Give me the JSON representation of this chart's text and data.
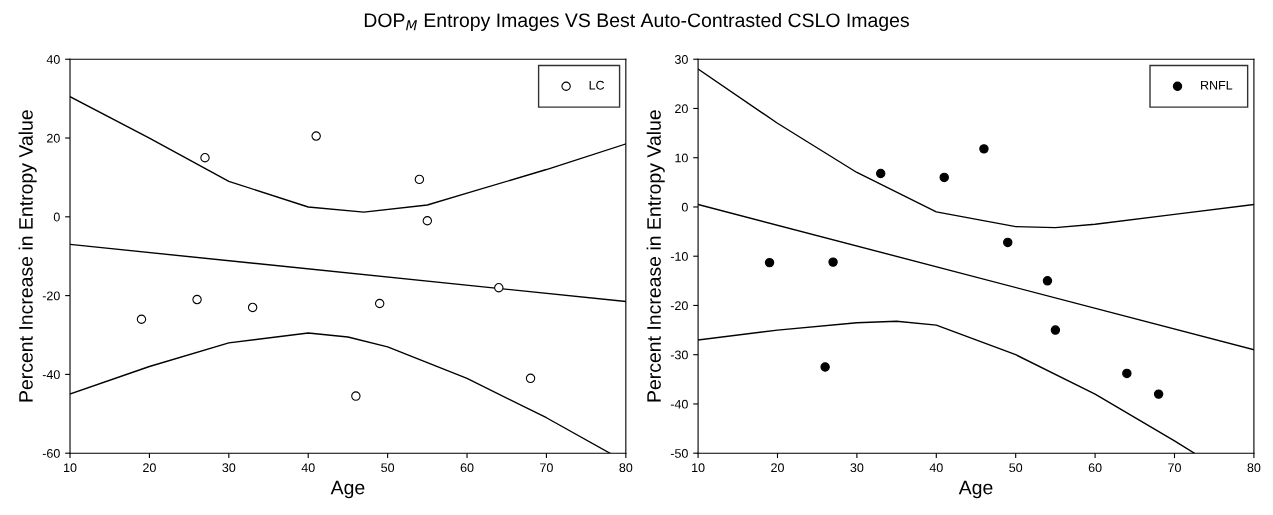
{
  "chart_data": [
    {
      "type": "scatter",
      "title": "DOP$_{M}$ Entropy Images VS Best Auto-Contrasted CSLO Images",
      "xlabel": "Age",
      "ylabel": "Percent Increase in Entropy Value",
      "xlim": [
        10,
        80
      ],
      "xticks": [
        10,
        20,
        30,
        40,
        50,
        60,
        70,
        80
      ],
      "ylim": [
        -60,
        40
      ],
      "yticks": [
        -60,
        -40,
        -20,
        0,
        20,
        40
      ],
      "legend": "top right",
      "grid": false,
      "series": [
        {
          "name": "LC",
          "marker": "circle",
          "color": "#ffffff",
          "x": [
            19,
            26,
            27,
            33,
            41,
            46,
            49,
            54,
            55,
            64,
            68
          ],
          "values": [
            -26,
            -21,
            15,
            -23,
            20.5,
            -45.5,
            -22,
            9.5,
            -1,
            -18,
            -41
          ]
        },
        {
          "type": "line",
          "color": "#000000",
          "x": [
            10,
            80
          ],
          "values": [
            -7,
            -21.5
          ]
        },
        {
          "type": "line",
          "color": "#000000",
          "x": [
            10,
            20,
            30,
            40,
            47,
            55,
            60,
            70,
            80
          ],
          "values": [
            30.5,
            20,
            9,
            2.5,
            1.2,
            3,
            6,
            12,
            18.5
          ]
        },
        {
          "type": "line",
          "color": "#000000",
          "x": [
            10,
            20,
            30,
            40,
            45,
            50,
            60,
            70,
            78
          ],
          "values": [
            -45,
            -38,
            -32,
            -29.5,
            -30.5,
            -33,
            -41,
            -51,
            -60
          ]
        }
      ]
    },
    {
      "type": "scatter",
      "xlabel": "Age",
      "ylabel": "Percent Increase in Entropy Value",
      "xlim": [
        10,
        80
      ],
      "xticks": [
        10,
        20,
        30,
        40,
        50,
        60,
        70,
        80
      ],
      "ylim": [
        -50,
        30
      ],
      "yticks": [
        -50,
        -40,
        -30,
        -20,
        -10,
        0,
        10,
        20,
        30
      ],
      "legend": "top right",
      "grid": false,
      "series": [
        {
          "name": "RNFL",
          "marker": "circle",
          "color": "#000000",
          "x": [
            19,
            26,
            27,
            33,
            41,
            46,
            49,
            54,
            55,
            64,
            68
          ],
          "values": [
            -11.3,
            -32.5,
            -11.2,
            6.8,
            6,
            11.8,
            -7.2,
            -15,
            -25,
            -33.8,
            -38
          ]
        },
        {
          "type": "line",
          "color": "#000000",
          "x": [
            10,
            80
          ],
          "values": [
            0.5,
            -29
          ]
        },
        {
          "type": "line",
          "color": "#000000",
          "x": [
            10,
            20,
            30,
            40,
            50,
            55,
            60,
            70,
            80
          ],
          "values": [
            28,
            17,
            7,
            -1,
            -4,
            -4.2,
            -3.5,
            -1.5,
            0.5
          ]
        },
        {
          "type": "line",
          "color": "#000000",
          "x": [
            10,
            20,
            30,
            35,
            40,
            50,
            60,
            70,
            72.5
          ],
          "values": [
            -27,
            -25,
            -23.5,
            -23.2,
            -24,
            -30,
            -38,
            -47.5,
            -50
          ]
        }
      ]
    }
  ]
}
